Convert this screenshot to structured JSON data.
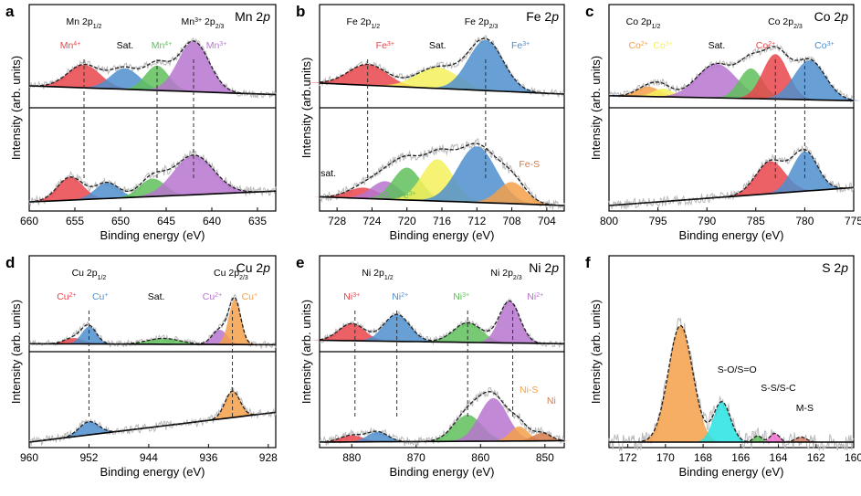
{
  "colors": {
    "red": "#e8454b",
    "blue": "#4e8fcf",
    "green": "#5fbf5c",
    "purple": "#b774cf",
    "yellow": "#f5f05a",
    "orange": "#f5a04a",
    "cyan": "#28e3e3",
    "pink": "#f26fcd",
    "raw": "#b9b9b9",
    "fit": "#222222"
  },
  "axis_labels": {
    "x": "Binding energy (eV)",
    "y": "Intensity (arb. units)"
  },
  "chart_data": [
    {
      "id": "a",
      "type": "line",
      "title": "Mn 2p",
      "xlabel": "Binding energy (eV)",
      "ylabel": "Intensity (arb. units)",
      "xlim": [
        660,
        633
      ],
      "xticks": [
        660,
        655,
        650,
        645,
        640,
        635
      ],
      "annotations": [
        {
          "t": "Mn 2p",
          "s": "1/2",
          "x": 654,
          "c": "#000",
          "top": true
        },
        {
          "t": "Mn",
          "sup": "3+",
          "rest": " 2p",
          "s": "2/3",
          "x": 641,
          "c": "#000",
          "top": true
        },
        {
          "t": "Mn",
          "sup": "4+",
          "x": 655.5,
          "c": "#e8454b"
        },
        {
          "t": "Sat.",
          "x": 649.5,
          "c": "#000"
        },
        {
          "t": "Mn",
          "sup": "4+",
          "x": 645.5,
          "c": "#5fbf5c"
        },
        {
          "t": "Mn",
          "sup": "3+",
          "x": 639.5,
          "c": "#b774cf"
        }
      ],
      "series": [
        {
          "name": "upper",
          "peaks": [
            {
              "pos": 654,
              "h": 0.42,
              "w": 1.8,
              "c": "red"
            },
            {
              "pos": 649.5,
              "h": 0.38,
              "w": 1.6,
              "c": "blue"
            },
            {
              "pos": 646,
              "h": 0.45,
              "w": 1.3,
              "c": "green"
            },
            {
              "pos": 642,
              "h": 0.92,
              "w": 1.7,
              "c": "purple"
            }
          ],
          "bg": [
            0.3,
            0.14
          ]
        },
        {
          "name": "lower",
          "peaks": [
            {
              "pos": 655.5,
              "h": 0.32,
              "w": 1.4,
              "c": "red"
            },
            {
              "pos": 651.5,
              "h": 0.22,
              "w": 1.3,
              "c": "blue"
            },
            {
              "pos": 646.5,
              "h": 0.25,
              "w": 1.4,
              "c": "green"
            },
            {
              "pos": 642,
              "h": 0.55,
              "w": 2.2,
              "c": "purple"
            }
          ],
          "bg": [
            0.05,
            0.2
          ]
        }
      ],
      "dashed": [
        654,
        646,
        642
      ]
    },
    {
      "id": "b",
      "type": "line",
      "title": "Fe 2p",
      "xlabel": "Binding energy (eV)",
      "ylabel": "Intensity (arb.units)",
      "xlim": [
        730,
        702
      ],
      "xticks": [
        728,
        724,
        720,
        716,
        712,
        708,
        704
      ],
      "annotations": [
        {
          "t": "Fe 2p",
          "s": "1/2",
          "x": 725,
          "c": "#000",
          "top": true
        },
        {
          "t": "Fe 2p",
          "s": "2/3",
          "x": 711.5,
          "c": "#000",
          "top": true
        },
        {
          "t": "Fe",
          "sup": "3+",
          "x": 722.5,
          "c": "#e8454b"
        },
        {
          "t": "Sat.",
          "x": 716.5,
          "c": "#000"
        },
        {
          "t": "Fe",
          "sup": "3+",
          "x": 707,
          "c": "#4e8fcf"
        }
      ],
      "extra": [
        {
          "t": "sat.",
          "x": 729,
          "c": "#000"
        },
        {
          "t": "Fe-S",
          "x": 723.2,
          "c": "#b774cf"
        },
        {
          "t": "Fe",
          "sup": "3+",
          "x": 720,
          "c": "#5fbf5c"
        },
        {
          "t": "Fe-S",
          "x": 706,
          "c": "#d67a4b"
        }
      ],
      "series": [
        {
          "name": "upper",
          "peaks": [
            {
              "pos": 724.5,
              "h": 0.38,
              "w": 2.2,
              "c": "red"
            },
            {
              "pos": 716.5,
              "h": 0.38,
              "w": 2.4,
              "c": "yellow"
            },
            {
              "pos": 711,
              "h": 0.92,
              "w": 2.0,
              "c": "blue"
            }
          ],
          "bg": [
            0.35,
            0.15
          ]
        },
        {
          "name": "lower",
          "peaks": [
            {
              "pos": 725,
              "h": 0.15,
              "w": 1.8,
              "c": "red"
            },
            {
              "pos": 722.5,
              "h": 0.25,
              "w": 1.6,
              "c": "purple"
            },
            {
              "pos": 720,
              "h": 0.45,
              "w": 1.6,
              "c": "green"
            },
            {
              "pos": 716.5,
              "h": 0.58,
              "w": 1.8,
              "c": "yellow"
            },
            {
              "pos": 712,
              "h": 0.78,
              "w": 2.2,
              "c": "blue"
            },
            {
              "pos": 708,
              "h": 0.3,
              "w": 1.6,
              "c": "orange"
            }
          ],
          "bg": [
            0.12,
            0.0
          ]
        }
      ],
      "dashed": [
        724.5,
        711
      ]
    },
    {
      "id": "c",
      "type": "line",
      "title": "Co 2p",
      "xlabel": "Binding energy (eV)",
      "ylabel": "Intensity (arb. units)",
      "xlim": [
        800,
        775
      ],
      "xticks": [
        800,
        795,
        790,
        785,
        780,
        775
      ],
      "annotations": [
        {
          "t": "Co 2p",
          "s": "1/2",
          "x": 796.5,
          "c": "#000",
          "top": true
        },
        {
          "t": "Co 2p",
          "s": "2/3",
          "x": 782,
          "c": "#000",
          "top": true
        },
        {
          "t": "Sat.",
          "x": 789,
          "c": "#000"
        },
        {
          "t": "Co",
          "sup": "2+",
          "x": 784,
          "c": "#e8454b"
        },
        {
          "t": "Co",
          "sup": "3+",
          "x": 778,
          "c": "#4e8fcf"
        },
        {
          "t": "Co",
          "sup": "2+",
          "x": 797,
          "c": "#f5a04a"
        },
        {
          "t": "Co",
          "sup": "3+",
          "x": 794.5,
          "c": "#f5f05a"
        }
      ],
      "series": [
        {
          "name": "upper",
          "peaks": [
            {
              "pos": 796,
              "h": 0.18,
              "w": 1.2,
              "c": "orange"
            },
            {
              "pos": 794.5,
              "h": 0.15,
              "w": 1.0,
              "c": "yellow"
            },
            {
              "pos": 789,
              "h": 0.62,
              "w": 2.0,
              "c": "purple"
            },
            {
              "pos": 785.5,
              "h": 0.55,
              "w": 1.2,
              "c": "green"
            },
            {
              "pos": 783,
              "h": 0.82,
              "w": 1.3,
              "c": "red"
            },
            {
              "pos": 779.5,
              "h": 0.72,
              "w": 1.6,
              "c": "blue"
            }
          ],
          "bg": [
            0.12,
            0.03
          ]
        },
        {
          "name": "lower",
          "peaks": [
            {
              "pos": 783.5,
              "h": 0.45,
              "w": 1.5,
              "c": "red"
            },
            {
              "pos": 780,
              "h": 0.55,
              "w": 1.3,
              "c": "blue"
            }
          ],
          "bg": [
            0.0,
            0.25
          ]
        }
      ],
      "dashed": [
        783,
        780
      ]
    },
    {
      "id": "d",
      "type": "line",
      "title": "Cu 2p",
      "xlabel": "Binding energy (eV)",
      "ylabel": "Intensity (arb. units)",
      "xlim": [
        960,
        927
      ],
      "xticks": [
        960,
        952,
        944,
        936,
        928
      ],
      "annotations": [
        {
          "t": "Cu 2p",
          "s": "1/2",
          "x": 952,
          "c": "#000",
          "top": true
        },
        {
          "t": "Cu 2p",
          "s": "2/3",
          "x": 933,
          "c": "#000",
          "top": true
        },
        {
          "t": "Cu",
          "sup": "2+",
          "x": 955,
          "c": "#e8454b"
        },
        {
          "t": "Cu",
          "sup": "+",
          "x": 950.5,
          "c": "#4e8fcf"
        },
        {
          "t": "Sat.",
          "x": 943,
          "c": "#000"
        },
        {
          "t": "Cu",
          "sup": "2+",
          "x": 935.5,
          "c": "#b774cf"
        },
        {
          "t": "Cu",
          "sup": "+",
          "x": 930.5,
          "c": "#f5a04a"
        }
      ],
      "series": [
        {
          "name": "upper",
          "peaks": [
            {
              "pos": 954,
              "h": 0.12,
              "w": 1.3,
              "c": "red"
            },
            {
              "pos": 952,
              "h": 0.35,
              "w": 1.0,
              "c": "blue"
            },
            {
              "pos": 942,
              "h": 0.12,
              "w": 2.2,
              "c": "green"
            },
            {
              "pos": 934.5,
              "h": 0.3,
              "w": 1.0,
              "c": "purple"
            },
            {
              "pos": 932.5,
              "h": 0.92,
              "w": 0.8,
              "c": "orange"
            }
          ],
          "bg": [
            0.05,
            0.03
          ]
        },
        {
          "name": "lower",
          "peaks": [
            {
              "pos": 952,
              "h": 0.2,
              "w": 1.3,
              "c": "blue"
            },
            {
              "pos": 932.8,
              "h": 0.4,
              "w": 1.0,
              "c": "orange"
            }
          ],
          "bg": [
            0.0,
            0.45
          ]
        }
      ],
      "dashed": [
        952,
        932.8
      ]
    },
    {
      "id": "e",
      "type": "line",
      "title": "Ni 2p",
      "xlabel": "Binding energy (eV)",
      "ylabel": "Intensity (arb. units)",
      "xlim": [
        885,
        847
      ],
      "xticks": [
        880,
        870,
        860,
        850
      ],
      "annotations": [
        {
          "t": "Ni 2p",
          "s": "1/2",
          "x": 876,
          "c": "#000",
          "top": true
        },
        {
          "t": "Ni 2p",
          "s": "2/3",
          "x": 856,
          "c": "#000",
          "top": true
        },
        {
          "t": "Ni",
          "sup": "3+",
          "x": 880,
          "c": "#e8454b"
        },
        {
          "t": "Ni",
          "sup": "2+",
          "x": 872.5,
          "c": "#4e8fcf"
        },
        {
          "t": "Ni",
          "sup": "3+",
          "x": 863,
          "c": "#5fbf5c"
        },
        {
          "t": "Ni",
          "sup": "2+",
          "x": 851.5,
          "c": "#b774cf"
        }
      ],
      "extra": [
        {
          "t": "Ni-S",
          "x": 852.5,
          "c": "#f5a04a"
        },
        {
          "t": "Ni",
          "x": 849,
          "c": "#d67a4b"
        }
      ],
      "series": [
        {
          "name": "upper",
          "peaks": [
            {
              "pos": 880,
              "h": 0.35,
              "w": 2.0,
              "c": "red"
            },
            {
              "pos": 873,
              "h": 0.55,
              "w": 2.0,
              "c": "blue"
            },
            {
              "pos": 862,
              "h": 0.4,
              "w": 2.2,
              "c": "green"
            },
            {
              "pos": 855.5,
              "h": 0.85,
              "w": 1.6,
              "c": "purple"
            }
          ],
          "bg": [
            0.12,
            0.05
          ]
        },
        {
          "name": "lower",
          "peaks": [
            {
              "pos": 880,
              "h": 0.1,
              "w": 1.8,
              "c": "red"
            },
            {
              "pos": 876,
              "h": 0.15,
              "w": 1.6,
              "c": "blue"
            },
            {
              "pos": 862,
              "h": 0.4,
              "w": 2.2,
              "c": "green"
            },
            {
              "pos": 858,
              "h": 0.65,
              "w": 2.2,
              "c": "purple"
            },
            {
              "pos": 854,
              "h": 0.22,
              "w": 1.4,
              "c": "orange"
            },
            {
              "pos": 850.5,
              "h": 0.12,
              "w": 1.4,
              "c": "orange2"
            }
          ],
          "bg": [
            0.0,
            0.02
          ]
        }
      ],
      "dashed": [
        879.5,
        873,
        862,
        855
      ]
    },
    {
      "id": "f",
      "type": "area",
      "title": "S 2p",
      "xlabel": "Binding energy (eV)",
      "ylabel": "Intensity (arb. units)",
      "xlim": [
        173,
        160
      ],
      "xticks": [
        172,
        170,
        168,
        166,
        164,
        162,
        160
      ],
      "annotations": [
        {
          "t": "S-O/S=O",
          "x": 166.2,
          "c": "#000"
        },
        {
          "t": "S-S/S-C",
          "x": 164,
          "c": "#000"
        },
        {
          "t": "M-S",
          "x": 162.6,
          "c": "#000"
        }
      ],
      "series": [
        {
          "name": "fit",
          "peaks": [
            {
              "pos": 169.2,
              "h": 0.93,
              "w": 0.65,
              "c": "orange"
            },
            {
              "pos": 167,
              "h": 0.32,
              "w": 0.45,
              "c": "cyan"
            },
            {
              "pos": 165.1,
              "h": 0.05,
              "w": 0.22,
              "c": "green"
            },
            {
              "pos": 164.2,
              "h": 0.07,
              "w": 0.25,
              "c": "pink"
            },
            {
              "pos": 162.8,
              "h": 0.04,
              "w": 0.3,
              "c": "brown"
            }
          ],
          "bg": [
            0.0,
            0.0
          ]
        }
      ]
    }
  ]
}
